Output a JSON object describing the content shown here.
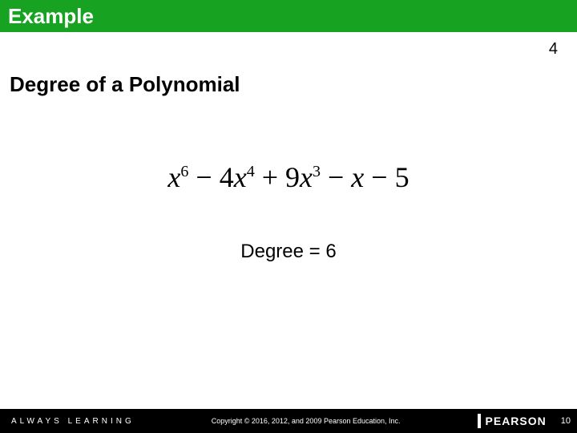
{
  "header": {
    "label": "Example",
    "bg_color": "#17a321",
    "text_color": "#ffffff",
    "example_number": "4"
  },
  "content": {
    "subtitle": "Degree of a Polynomial",
    "formula": {
      "terms": [
        {
          "sign": "",
          "coef": "",
          "var": "x",
          "exp": "6"
        },
        {
          "sign": " − ",
          "coef": "4",
          "var": "x",
          "exp": "4"
        },
        {
          "sign": " + ",
          "coef": "9",
          "var": "x",
          "exp": "3"
        },
        {
          "sign": " − ",
          "coef": "",
          "var": "x",
          "exp": ""
        },
        {
          "sign": " − ",
          "coef": "5",
          "var": "",
          "exp": ""
        }
      ]
    },
    "degree_label": "Degree = 6"
  },
  "footer": {
    "left_text": "ALWAYS LEARNING",
    "copyright": "Copyright © 2016, 2012, and 2009 Pearson Education, Inc.",
    "brand": "PEARSON",
    "page_number": "10",
    "bg_color": "#000000",
    "text_color": "#ffffff"
  }
}
